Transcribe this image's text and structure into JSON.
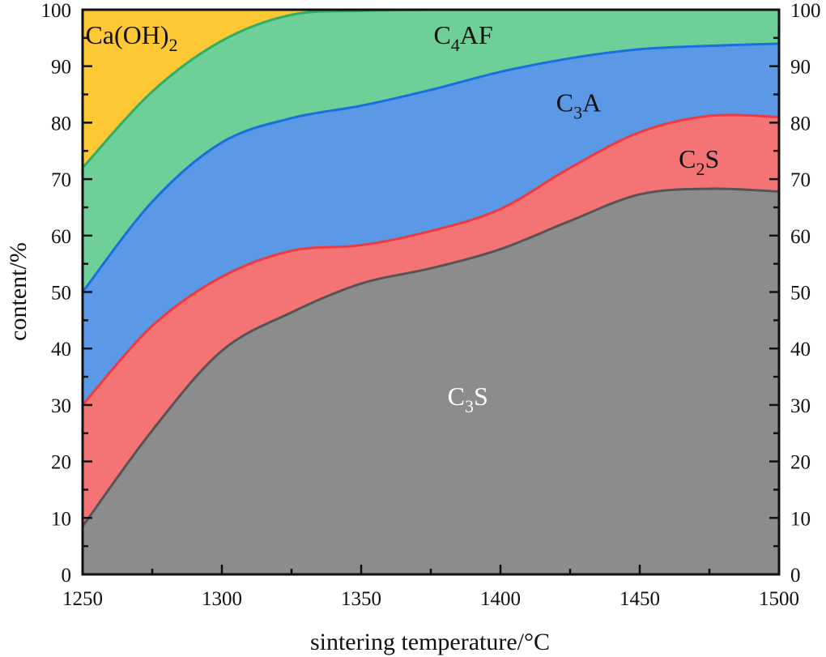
{
  "chart_data": {
    "type": "area",
    "stacked": true,
    "title": "",
    "xlabel": "sintering temperature/°C",
    "ylabel": "content/%",
    "xlim": [
      1250,
      1500
    ],
    "ylim": [
      0,
      100
    ],
    "x_ticks": [
      1250,
      1300,
      1350,
      1400,
      1450,
      1500
    ],
    "y_ticks": [
      0,
      10,
      20,
      30,
      40,
      50,
      60,
      70,
      80,
      90,
      100
    ],
    "right_axis_ticks": [
      0,
      10,
      20,
      30,
      40,
      50,
      60,
      70,
      80,
      90,
      100
    ],
    "grid": false,
    "legend": "none (inline area labels)",
    "x": [
      1250,
      1275,
      1300,
      1325,
      1350,
      1375,
      1400,
      1425,
      1450,
      1475,
      1500
    ],
    "series": [
      {
        "name": "C3S",
        "label_main": "C",
        "label_sub": "3",
        "label_tail": "S",
        "fill": "#8c8c8c",
        "line": "#555555",
        "label_color": "#ffffff",
        "values": [
          8.5,
          25.5,
          39.6,
          46.4,
          51.5,
          54.2,
          57.6,
          62.6,
          67.3,
          68.3,
          67.8
        ]
      },
      {
        "name": "C2S",
        "label_main": "C",
        "label_sub": "2",
        "label_tail": "S",
        "fill": "#f47476",
        "line": "#f03a3f",
        "label_color": "#111111",
        "values": [
          21.5,
          18.5,
          13.1,
          10.9,
          6.8,
          6.6,
          7.1,
          9.4,
          11.0,
          12.9,
          13.2
        ]
      },
      {
        "name": "C3A",
        "label_main": "C",
        "label_sub": "3",
        "label_tail": "A",
        "fill": "#5b98e6",
        "line": "#1a6fe0",
        "label_color": "#111111",
        "values": [
          20.0,
          22.0,
          23.8,
          23.5,
          24.7,
          25.0,
          24.3,
          19.4,
          14.7,
          12.4,
          13.0
        ]
      },
      {
        "name": "C4AF",
        "label_main": "C",
        "label_sub": "4",
        "label_tail": "AF",
        "fill": "#6ecf99",
        "line": "#2fae6a",
        "label_color": "#111111",
        "values": [
          22.0,
          19.5,
          18.0,
          18.3,
          16.8,
          14.2,
          11.0,
          8.6,
          7.0,
          6.4,
          6.0
        ]
      },
      {
        "name": "Ca(OH)2",
        "label_main": "Ca(OH)",
        "label_sub": "2",
        "label_tail": "",
        "fill": "#fdc834",
        "line": "#fdc834",
        "label_color": "#111111",
        "values": [
          28.0,
          14.5,
          5.5,
          0.9,
          0.2,
          0.0,
          0.0,
          0.0,
          0.0,
          0.0,
          0.0
        ]
      }
    ],
    "annotations": [
      {
        "series": "C3S",
        "at_x": 1381,
        "at_y": 30
      },
      {
        "series": "C2S",
        "at_x": 1464,
        "at_y": 72
      },
      {
        "series": "C3A",
        "at_x": 1420,
        "at_y": 82
      },
      {
        "series": "C4AF",
        "at_x": 1376,
        "at_y": 94
      },
      {
        "series": "Ca(OH)2",
        "at_x": 1251,
        "at_y": 94
      }
    ]
  }
}
